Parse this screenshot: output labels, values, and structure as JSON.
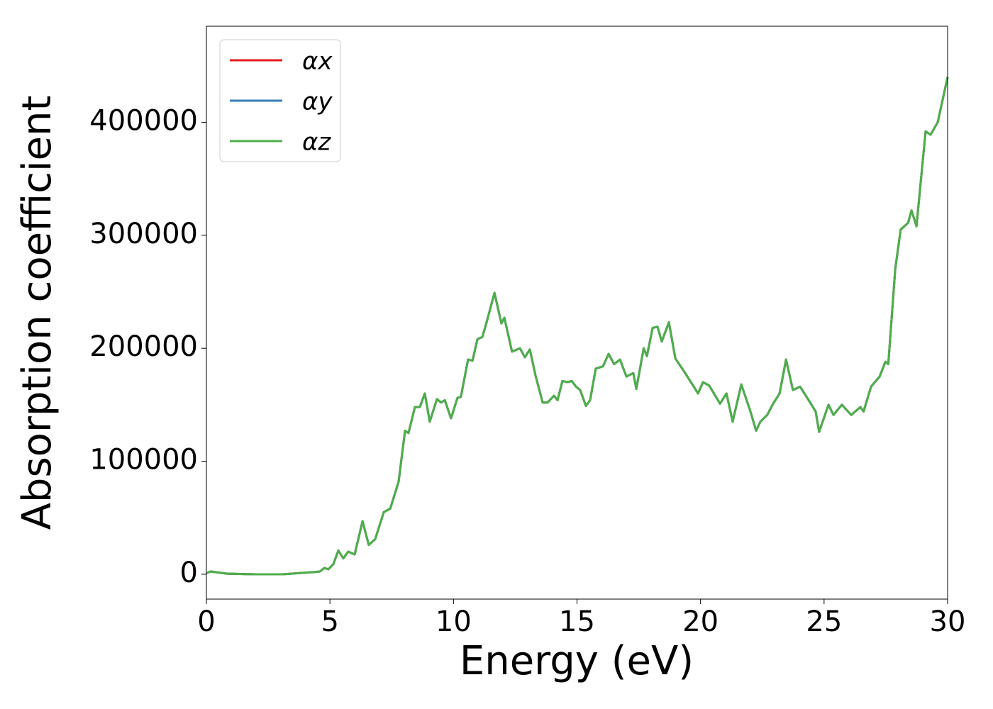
{
  "chart_data": {
    "type": "line",
    "xlabel": "Energy (eV)",
    "ylabel": "Absorption coefficient",
    "x": [
      0,
      0.17,
      0.83,
      2,
      3.1,
      4.4,
      4.6,
      4.77,
      4.94,
      5.14,
      5.34,
      5.54,
      5.74,
      6.0,
      6.32,
      6.57,
      6.83,
      7.18,
      7.44,
      7.78,
      8.04,
      8.18,
      8.44,
      8.64,
      8.84,
      9.04,
      9.33,
      9.5,
      9.65,
      9.9,
      10.16,
      10.3,
      10.59,
      10.77,
      10.97,
      11.17,
      11.34,
      11.66,
      11.94,
      12.06,
      12.37,
      12.69,
      12.89,
      13.09,
      13.32,
      13.61,
      13.81,
      14.07,
      14.21,
      14.41,
      14.61,
      14.79,
      14.96,
      15.13,
      15.36,
      15.53,
      15.76,
      16.05,
      16.28,
      16.5,
      16.74,
      17.0,
      17.28,
      17.4,
      17.7,
      17.83,
      18.06,
      18.26,
      18.43,
      18.72,
      18.98,
      19.35,
      19.9,
      20.1,
      20.35,
      20.79,
      21.05,
      21.3,
      21.65,
      22.02,
      22.25,
      22.42,
      22.7,
      22.94,
      23.2,
      23.46,
      23.74,
      24.03,
      24.38,
      24.66,
      24.8,
      25.18,
      25.38,
      25.72,
      26.1,
      26.47,
      26.6,
      26.9,
      27.25,
      27.48,
      27.6,
      27.88,
      28.1,
      28.4,
      28.54,
      28.74,
      29.11,
      29.31,
      29.6,
      30
    ],
    "series": [
      {
        "name": "αx",
        "color": "#e41a1c",
        "values": [
          1000,
          2500,
          500,
          0,
          0,
          2000,
          2500,
          5500,
          4500,
          9000,
          21000,
          14000,
          20000,
          17500,
          47000,
          26000,
          31000,
          55000,
          58000,
          82000,
          127000,
          125000,
          148000,
          148000,
          160000,
          135000,
          155000,
          152000,
          154000,
          138000,
          156000,
          157000,
          190000,
          189000,
          208000,
          210000,
          223000,
          249000,
          222000,
          227000,
          197000,
          200000,
          192000,
          199000,
          176000,
          152000,
          152000,
          158000,
          154000,
          171000,
          170000,
          171000,
          166000,
          163000,
          149000,
          154000,
          182000,
          184000,
          195000,
          186000,
          190000,
          175000,
          178000,
          164000,
          200000,
          193000,
          218000,
          219000,
          206000,
          223000,
          191000,
          179000,
          160000,
          170000,
          167000,
          151000,
          160000,
          135000,
          168000,
          144000,
          127000,
          135000,
          141000,
          151000,
          160000,
          190000,
          163000,
          166000,
          154000,
          144000,
          126000,
          150000,
          141000,
          150000,
          141000,
          148000,
          144000,
          166000,
          175000,
          188000,
          186000,
          270000,
          305000,
          311000,
          322000,
          308000,
          392000,
          389000,
          400000,
          440000
        ]
      },
      {
        "name": "αy",
        "color": "#377eb8",
        "values": [
          1000,
          2500,
          500,
          0,
          0,
          2000,
          2500,
          5500,
          4500,
          9000,
          21000,
          14000,
          20000,
          17500,
          47000,
          26000,
          31000,
          55000,
          58000,
          82000,
          127000,
          125000,
          148000,
          148000,
          160000,
          135000,
          155000,
          152000,
          154000,
          138000,
          156000,
          157000,
          190000,
          189000,
          208000,
          210000,
          223000,
          249000,
          222000,
          227000,
          197000,
          200000,
          192000,
          199000,
          176000,
          152000,
          152000,
          158000,
          154000,
          171000,
          170000,
          171000,
          166000,
          163000,
          149000,
          154000,
          182000,
          184000,
          195000,
          186000,
          190000,
          175000,
          178000,
          164000,
          200000,
          193000,
          218000,
          219000,
          206000,
          223000,
          191000,
          179000,
          160000,
          170000,
          167000,
          151000,
          160000,
          135000,
          168000,
          144000,
          127000,
          135000,
          141000,
          151000,
          160000,
          190000,
          163000,
          166000,
          154000,
          144000,
          126000,
          150000,
          141000,
          150000,
          141000,
          148000,
          144000,
          166000,
          175000,
          188000,
          186000,
          270000,
          305000,
          311000,
          322000,
          308000,
          392000,
          389000,
          400000,
          440000
        ]
      },
      {
        "name": "αz",
        "color": "#4daf4a",
        "values": [
          1000,
          2500,
          500,
          0,
          0,
          2000,
          2500,
          5500,
          4500,
          9000,
          21000,
          14000,
          20000,
          17500,
          47000,
          26000,
          31000,
          55000,
          58000,
          82000,
          127000,
          125000,
          148000,
          148000,
          160000,
          135000,
          155000,
          152000,
          154000,
          138000,
          156000,
          157000,
          190000,
          189000,
          208000,
          210000,
          223000,
          249000,
          222000,
          227000,
          197000,
          200000,
          192000,
          199000,
          176000,
          152000,
          152000,
          158000,
          154000,
          171000,
          170000,
          171000,
          166000,
          163000,
          149000,
          154000,
          182000,
          184000,
          195000,
          186000,
          190000,
          175000,
          178000,
          164000,
          200000,
          193000,
          218000,
          219000,
          206000,
          223000,
          191000,
          179000,
          160000,
          170000,
          167000,
          151000,
          160000,
          135000,
          168000,
          144000,
          127000,
          135000,
          141000,
          151000,
          160000,
          190000,
          163000,
          166000,
          154000,
          144000,
          126000,
          150000,
          141000,
          150000,
          141000,
          148000,
          144000,
          166000,
          175000,
          188000,
          186000,
          270000,
          305000,
          311000,
          322000,
          308000,
          392000,
          389000,
          400000,
          440000
        ]
      }
    ],
    "xlim": [
      0,
      30
    ],
    "xticks": [
      0,
      5,
      10,
      15,
      20,
      25,
      30
    ],
    "ylim": [
      -22000,
      485000
    ],
    "yticks": [
      0,
      100000,
      200000,
      300000,
      400000
    ],
    "legend": "upper left"
  }
}
